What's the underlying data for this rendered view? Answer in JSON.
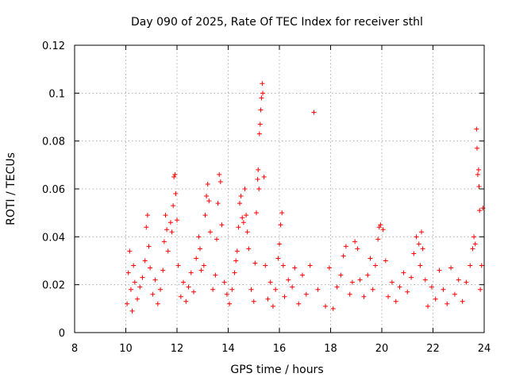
{
  "chart_data": {
    "type": "scatter",
    "title": "Day 090 of 2025, Rate Of TEC Index for receiver sthl",
    "xlabel": "GPS time / hours",
    "ylabel": "ROTI / TECUs",
    "xlim": [
      8,
      24
    ],
    "ylim": [
      0,
      0.12
    ],
    "x_ticks": [
      8,
      10,
      12,
      14,
      16,
      18,
      20,
      22,
      24
    ],
    "y_ticks": [
      0,
      0.02,
      0.04,
      0.06,
      0.08,
      0.1,
      0.12
    ],
    "x_tick_labels": [
      "8",
      "10",
      "12",
      "14",
      "16",
      "18",
      "20",
      "22",
      "24"
    ],
    "y_tick_labels": [
      "0",
      "0.02",
      "0.04",
      "0.06",
      "0.08",
      "0.1",
      "0.12"
    ],
    "grid": true,
    "marker": "+",
    "series": [
      {
        "name": "sthl",
        "color": "#ff0000",
        "points": [
          [
            10.05,
            0.012
          ],
          [
            10.1,
            0.025
          ],
          [
            10.15,
            0.034
          ],
          [
            10.2,
            0.018
          ],
          [
            10.25,
            0.009
          ],
          [
            10.3,
            0.028
          ],
          [
            10.35,
            0.021
          ],
          [
            10.45,
            0.014
          ],
          [
            10.55,
            0.019
          ],
          [
            10.65,
            0.023
          ],
          [
            10.75,
            0.03
          ],
          [
            10.8,
            0.044
          ],
          [
            10.85,
            0.049
          ],
          [
            10.9,
            0.036
          ],
          [
            10.95,
            0.027
          ],
          [
            11.05,
            0.016
          ],
          [
            11.15,
            0.022
          ],
          [
            11.25,
            0.012
          ],
          [
            11.35,
            0.018
          ],
          [
            11.45,
            0.026
          ],
          [
            11.5,
            0.038
          ],
          [
            11.55,
            0.049
          ],
          [
            11.6,
            0.043
          ],
          [
            11.65,
            0.034
          ],
          [
            11.75,
            0.046
          ],
          [
            11.8,
            0.042
          ],
          [
            11.85,
            0.053
          ],
          [
            11.88,
            0.065
          ],
          [
            11.92,
            0.066
          ],
          [
            11.95,
            0.058
          ],
          [
            12.0,
            0.047
          ],
          [
            12.05,
            0.028
          ],
          [
            12.15,
            0.015
          ],
          [
            12.25,
            0.021
          ],
          [
            12.35,
            0.013
          ],
          [
            12.45,
            0.019
          ],
          [
            12.55,
            0.025
          ],
          [
            12.65,
            0.017
          ],
          [
            12.75,
            0.031
          ],
          [
            12.85,
            0.04
          ],
          [
            12.9,
            0.035
          ],
          [
            12.95,
            0.026
          ],
          [
            13.05,
            0.028
          ],
          [
            13.1,
            0.049
          ],
          [
            13.15,
            0.057
          ],
          [
            13.2,
            0.062
          ],
          [
            13.25,
            0.055
          ],
          [
            13.3,
            0.042
          ],
          [
            13.4,
            0.018
          ],
          [
            13.5,
            0.024
          ],
          [
            13.55,
            0.039
          ],
          [
            13.6,
            0.054
          ],
          [
            13.65,
            0.066
          ],
          [
            13.7,
            0.063
          ],
          [
            13.75,
            0.045
          ],
          [
            13.85,
            0.021
          ],
          [
            13.95,
            0.016
          ],
          [
            14.05,
            0.012
          ],
          [
            14.15,
            0.018
          ],
          [
            14.25,
            0.025
          ],
          [
            14.3,
            0.03
          ],
          [
            14.35,
            0.034
          ],
          [
            14.4,
            0.044
          ],
          [
            14.45,
            0.054
          ],
          [
            14.5,
            0.057
          ],
          [
            14.55,
            0.048
          ],
          [
            14.6,
            0.046
          ],
          [
            14.65,
            0.06
          ],
          [
            14.7,
            0.049
          ],
          [
            14.75,
            0.042
          ],
          [
            14.8,
            0.035
          ],
          [
            14.9,
            0.018
          ],
          [
            15.0,
            0.013
          ],
          [
            15.05,
            0.029
          ],
          [
            15.1,
            0.05
          ],
          [
            15.15,
            0.064
          ],
          [
            15.17,
            0.068
          ],
          [
            15.2,
            0.06
          ],
          [
            15.22,
            0.083
          ],
          [
            15.25,
            0.087
          ],
          [
            15.27,
            0.093
          ],
          [
            15.3,
            0.098
          ],
          [
            15.33,
            0.104
          ],
          [
            15.35,
            0.1
          ],
          [
            15.4,
            0.065
          ],
          [
            15.45,
            0.028
          ],
          [
            15.55,
            0.014
          ],
          [
            15.65,
            0.021
          ],
          [
            15.75,
            0.011
          ],
          [
            15.85,
            0.018
          ],
          [
            15.95,
            0.031
          ],
          [
            16.0,
            0.037
          ],
          [
            16.05,
            0.045
          ],
          [
            16.1,
            0.05
          ],
          [
            16.15,
            0.028
          ],
          [
            16.2,
            0.015
          ],
          [
            16.35,
            0.022
          ],
          [
            16.5,
            0.019
          ],
          [
            16.6,
            0.027
          ],
          [
            16.75,
            0.012
          ],
          [
            16.9,
            0.024
          ],
          [
            17.05,
            0.016
          ],
          [
            17.2,
            0.028
          ],
          [
            17.35,
            0.092
          ],
          [
            17.5,
            0.018
          ],
          [
            17.8,
            0.011
          ],
          [
            17.95,
            0.027
          ],
          [
            18.1,
            0.01
          ],
          [
            18.25,
            0.019
          ],
          [
            18.4,
            0.024
          ],
          [
            18.5,
            0.032
          ],
          [
            18.6,
            0.036
          ],
          [
            18.75,
            0.016
          ],
          [
            18.85,
            0.021
          ],
          [
            18.95,
            0.038
          ],
          [
            19.05,
            0.035
          ],
          [
            19.15,
            0.022
          ],
          [
            19.3,
            0.015
          ],
          [
            19.45,
            0.024
          ],
          [
            19.55,
            0.031
          ],
          [
            19.65,
            0.018
          ],
          [
            19.75,
            0.028
          ],
          [
            19.85,
            0.039
          ],
          [
            19.9,
            0.044
          ],
          [
            19.95,
            0.045
          ],
          [
            20.05,
            0.043
          ],
          [
            20.15,
            0.03
          ],
          [
            20.25,
            0.015
          ],
          [
            20.4,
            0.021
          ],
          [
            20.55,
            0.013
          ],
          [
            20.7,
            0.019
          ],
          [
            20.85,
            0.025
          ],
          [
            21.0,
            0.017
          ],
          [
            21.15,
            0.023
          ],
          [
            21.25,
            0.033
          ],
          [
            21.35,
            0.04
          ],
          [
            21.45,
            0.037
          ],
          [
            21.5,
            0.028
          ],
          [
            21.55,
            0.042
          ],
          [
            21.6,
            0.035
          ],
          [
            21.7,
            0.022
          ],
          [
            21.8,
            0.011
          ],
          [
            21.95,
            0.019
          ],
          [
            22.1,
            0.014
          ],
          [
            22.25,
            0.026
          ],
          [
            22.4,
            0.018
          ],
          [
            22.55,
            0.012
          ],
          [
            22.7,
            0.027
          ],
          [
            22.85,
            0.016
          ],
          [
            23.0,
            0.022
          ],
          [
            23.15,
            0.013
          ],
          [
            23.3,
            0.021
          ],
          [
            23.45,
            0.028
          ],
          [
            23.55,
            0.035
          ],
          [
            23.6,
            0.04
          ],
          [
            23.65,
            0.037
          ],
          [
            23.7,
            0.085
          ],
          [
            23.72,
            0.077
          ],
          [
            23.75,
            0.066
          ],
          [
            23.78,
            0.068
          ],
          [
            23.8,
            0.061
          ],
          [
            23.82,
            0.051
          ],
          [
            23.85,
            0.018
          ],
          [
            23.9,
            0.028
          ],
          [
            23.95,
            0.052
          ]
        ]
      }
    ]
  }
}
